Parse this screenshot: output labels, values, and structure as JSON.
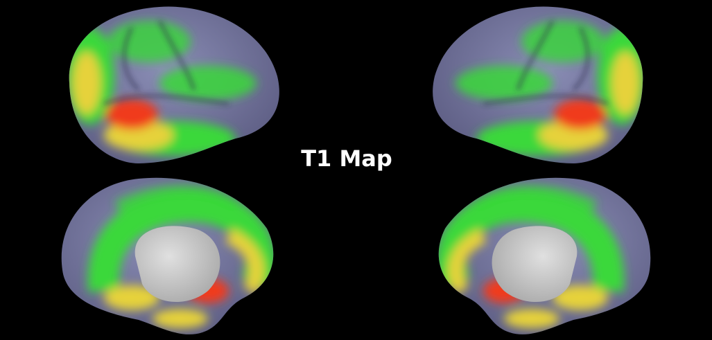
{
  "title": "T1 Map"
}
